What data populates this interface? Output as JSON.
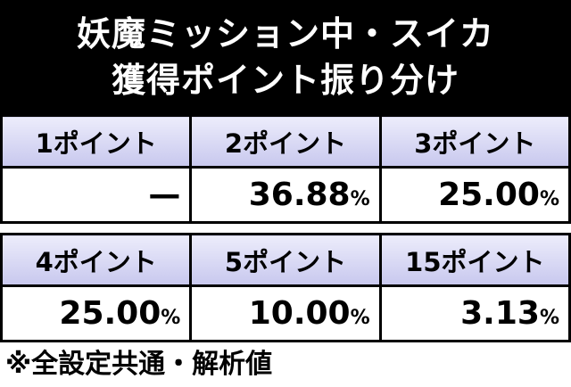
{
  "title": {
    "lines": [
      "妖魔ミッション中・スイカ",
      "獲得ポイント振り分け"
    ]
  },
  "tables": [
    {
      "headers": [
        "1ポイント",
        "2ポイント",
        "3ポイント"
      ],
      "cells": [
        {
          "number": "—"
        },
        {
          "number": "36.88",
          "unit": "%"
        },
        {
          "number": "25.00",
          "unit": "%"
        }
      ]
    },
    {
      "headers": [
        "4ポイント",
        "5ポイント",
        "15ポイント"
      ],
      "cells": [
        {
          "number": "25.00",
          "unit": "%"
        },
        {
          "number": "10.00",
          "unit": "%"
        },
        {
          "number": "3.13",
          "unit": "%"
        }
      ]
    }
  ],
  "footer": {
    "note": "※全設定共通・解析値"
  }
}
